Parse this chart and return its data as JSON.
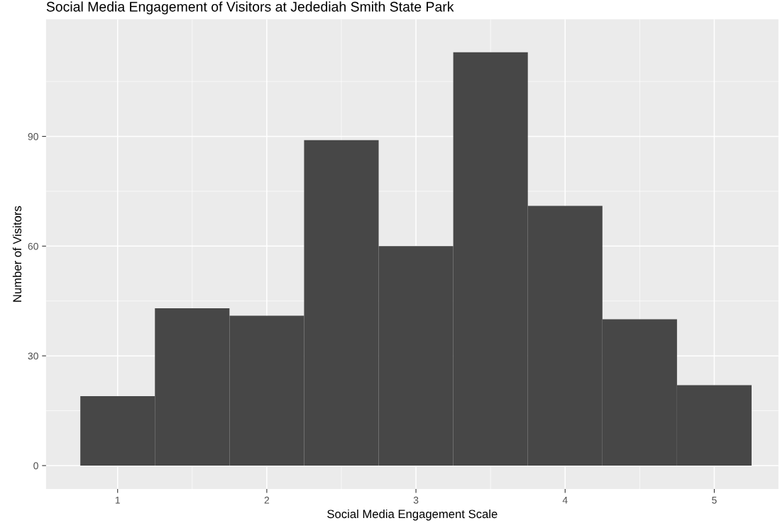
{
  "chart_data": {
    "type": "histogram",
    "title": "Social Media Engagement of Visitors at Jedediah Smith State Park",
    "xlabel": "Social Media Engagement Scale",
    "ylabel": "Number of Visitors",
    "bins": [
      0.75,
      1.25,
      1.75,
      2.25,
      2.75,
      3.25,
      3.75,
      4.25,
      4.75,
      5.25
    ],
    "values": [
      19,
      43,
      41,
      89,
      60,
      113,
      71,
      40,
      22
    ],
    "color": "#474747",
    "xlim": [
      0.52,
      5.43
    ],
    "ylim": [
      -6.4,
      122
    ],
    "xticks": [
      1,
      2,
      3,
      4,
      5
    ],
    "yticks": [
      0,
      30,
      60,
      90
    ],
    "grid": true
  }
}
